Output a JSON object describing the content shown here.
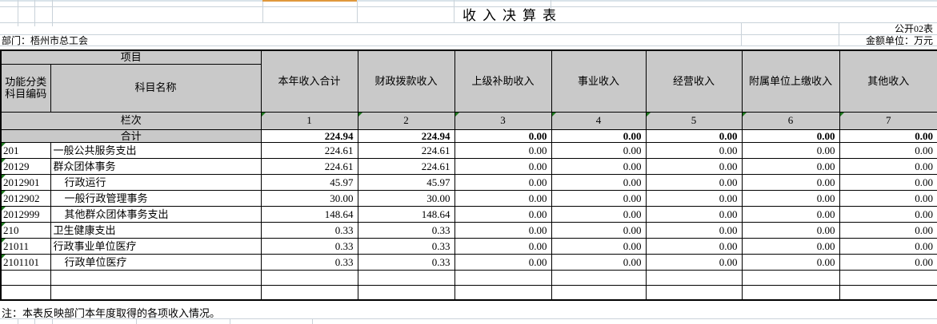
{
  "page": {
    "title": "收入决算表",
    "doc_label": "公开02表",
    "department": "部门：梧州市总工会",
    "unit": "金额单位：万元",
    "note": "注：本表反映部门本年度取得的各项收入情况。"
  },
  "table": {
    "header": {
      "project": "项目",
      "code": "功能分类科目编码",
      "name": "科目名称",
      "columns": [
        "本年收入合计",
        "财政拨款收入",
        "上级补助收入",
        "事业收入",
        "经营收入",
        "附属单位上缴收入",
        "其他收入"
      ],
      "lanci": "栏次",
      "col_numbers": [
        "1",
        "2",
        "3",
        "4",
        "5",
        "6",
        "7"
      ]
    },
    "total_row": {
      "label": "合计",
      "values": [
        "224.94",
        "224.94",
        "0.00",
        "0.00",
        "0.00",
        "0.00",
        "0.00"
      ]
    },
    "rows": [
      {
        "code": "201",
        "name": "一般公共服务支出",
        "indent": false,
        "values": [
          "224.61",
          "224.61",
          "0.00",
          "0.00",
          "0.00",
          "0.00",
          "0.00"
        ]
      },
      {
        "code": "20129",
        "name": "群众团体事务",
        "indent": false,
        "values": [
          "224.61",
          "224.61",
          "0.00",
          "0.00",
          "0.00",
          "0.00",
          "0.00"
        ]
      },
      {
        "code": "2012901",
        "name": "行政运行",
        "indent": true,
        "values": [
          "45.97",
          "45.97",
          "0.00",
          "0.00",
          "0.00",
          "0.00",
          "0.00"
        ]
      },
      {
        "code": "2012902",
        "name": "一般行政管理事务",
        "indent": true,
        "values": [
          "30.00",
          "30.00",
          "0.00",
          "0.00",
          "0.00",
          "0.00",
          "0.00"
        ]
      },
      {
        "code": "2012999",
        "name": "其他群众团体事务支出",
        "indent": true,
        "values": [
          "148.64",
          "148.64",
          "0.00",
          "0.00",
          "0.00",
          "0.00",
          "0.00"
        ]
      },
      {
        "code": "210",
        "name": "卫生健康支出",
        "indent": false,
        "values": [
          "0.33",
          "0.33",
          "0.00",
          "0.00",
          "0.00",
          "0.00",
          "0.00"
        ]
      },
      {
        "code": "21011",
        "name": "行政事业单位医疗",
        "indent": false,
        "values": [
          "0.33",
          "0.33",
          "0.00",
          "0.00",
          "0.00",
          "0.00",
          "0.00"
        ]
      },
      {
        "code": "2101101",
        "name": "行政单位医疗",
        "indent": true,
        "values": [
          "0.33",
          "0.33",
          "0.00",
          "0.00",
          "0.00",
          "0.00",
          "0.00"
        ]
      }
    ],
    "empty_rows": 2
  },
  "colors": {
    "header_fill": "#c9c9c9",
    "error_indicator_green": "#1f7a1f",
    "selection_orange": "#e0983c",
    "gridline": "#c9d2d9",
    "top_strip": "#d9e3ea",
    "border": "#000000"
  }
}
